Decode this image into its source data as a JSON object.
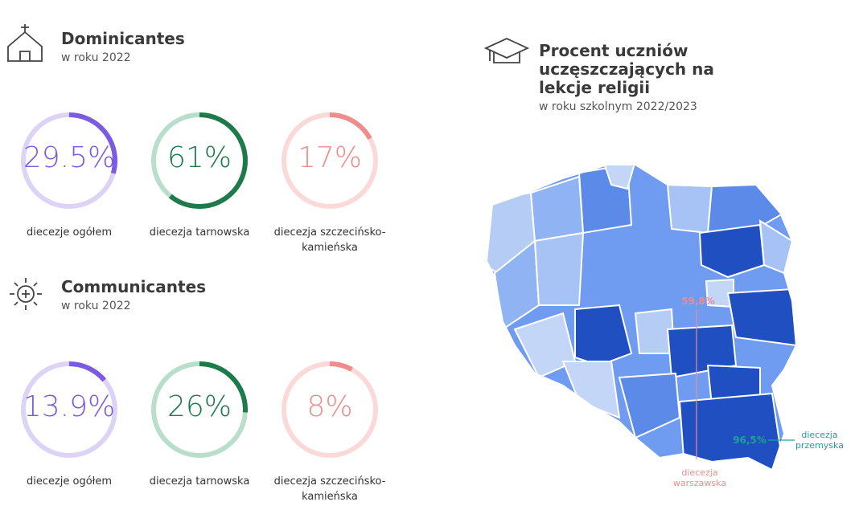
{
  "sections": [
    {
      "title": "Dominicantes",
      "subtitle": "w roku 2022",
      "gauges": [
        {
          "value": 29.5,
          "value_label": "29.5%",
          "label": "diecezje ogółem"
        },
        {
          "value": 61,
          "value_label": "61%",
          "label": "diecezja tarnowska"
        },
        {
          "value": 17,
          "value_label": "17%",
          "label": "diecezja szczecińsko-kamieńska"
        }
      ]
    },
    {
      "title": "Communicantes",
      "subtitle": "w roku 2022",
      "gauges": [
        {
          "value": 13.9,
          "value_label": "13.9%",
          "label": "diecezje ogółem"
        },
        {
          "value": 26,
          "value_label": "26%",
          "label": "diecezja tarnowska"
        },
        {
          "value": 8,
          "value_label": "8%",
          "label": "diecezja szczecińsko-kamieńska"
        }
      ]
    }
  ],
  "map": {
    "title": "Procent uczniów uczęszczających na lekcje religii",
    "subtitle": "w roku szkolnym 2022/2023",
    "annotations": [
      {
        "value": 59.8,
        "value_label": "59,8%",
        "label": "diecezja warszawska"
      },
      {
        "value": 96.5,
        "value_label": "96,5%",
        "label": "diecezja przemyska"
      }
    ]
  }
}
